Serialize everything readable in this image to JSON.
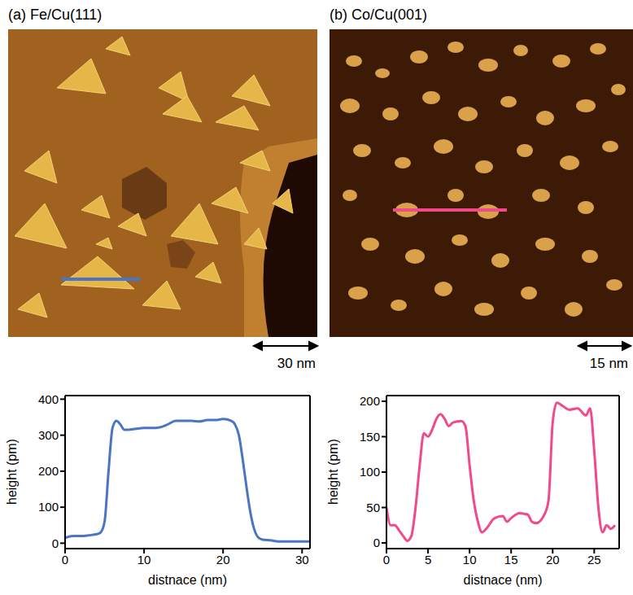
{
  "chart_data": [
    {
      "type": "line",
      "title": "(a) Fe/Cu(111)",
      "annotations": [
        "30 nm"
      ],
      "x_label": "distnace (nm)",
      "y_label": "height (pm)",
      "color": "#4a74c4",
      "x": [
        0,
        1,
        2,
        3,
        4,
        4.5,
        5,
        5.5,
        6,
        6.5,
        7,
        7.5,
        8,
        9,
        10,
        11,
        12,
        13,
        14,
        15,
        16,
        17,
        18,
        19,
        20,
        21,
        21.5,
        22,
        22.5,
        23,
        23.5,
        24,
        24.5,
        25,
        26,
        27,
        28,
        29,
        30,
        31
      ],
      "values": [
        15,
        20,
        20,
        22,
        25,
        30,
        60,
        200,
        320,
        340,
        330,
        315,
        315,
        318,
        320,
        320,
        322,
        330,
        340,
        340,
        340,
        338,
        342,
        342,
        345,
        340,
        330,
        300,
        230,
        150,
        80,
        35,
        15,
        10,
        8,
        5,
        5,
        5,
        5,
        5
      ],
      "xlim": [
        0,
        31
      ],
      "ylim": [
        -15,
        410
      ],
      "xticks": [
        0,
        10,
        20,
        30
      ],
      "yticks": [
        0,
        100,
        200,
        300,
        400
      ]
    },
    {
      "type": "line",
      "title": "(b) Co/Cu(001)",
      "annotations": [
        "15 nm"
      ],
      "x_label": "distnace (nm)",
      "y_label": "height (pm)",
      "color": "#f04a8c",
      "x": [
        0,
        0.5,
        1,
        1.5,
        2,
        2.5,
        3,
        3.5,
        4,
        4.5,
        5,
        5.5,
        6,
        6.5,
        7,
        7.5,
        8,
        9,
        9.5,
        10,
        10.5,
        11,
        11.5,
        12,
        13,
        14,
        14.5,
        15,
        16,
        17,
        17.5,
        18,
        19,
        19.5,
        20,
        20.5,
        21,
        22,
        23,
        24,
        24.5,
        25,
        25.5,
        26,
        26.5,
        27,
        27.5
      ],
      "values": [
        50,
        25,
        25,
        18,
        10,
        3,
        10,
        50,
        110,
        155,
        150,
        160,
        175,
        182,
        175,
        165,
        170,
        172,
        165,
        110,
        60,
        30,
        15,
        20,
        35,
        38,
        30,
        35,
        42,
        40,
        30,
        28,
        40,
        60,
        170,
        198,
        195,
        188,
        190,
        180,
        190,
        130,
        50,
        15,
        25,
        20,
        25
      ],
      "xlim": [
        0,
        28
      ],
      "ylim": [
        -8,
        208
      ],
      "xticks": [
        0,
        5,
        10,
        15,
        20,
        25
      ],
      "yticks": [
        0,
        50,
        100,
        150,
        200
      ]
    }
  ]
}
